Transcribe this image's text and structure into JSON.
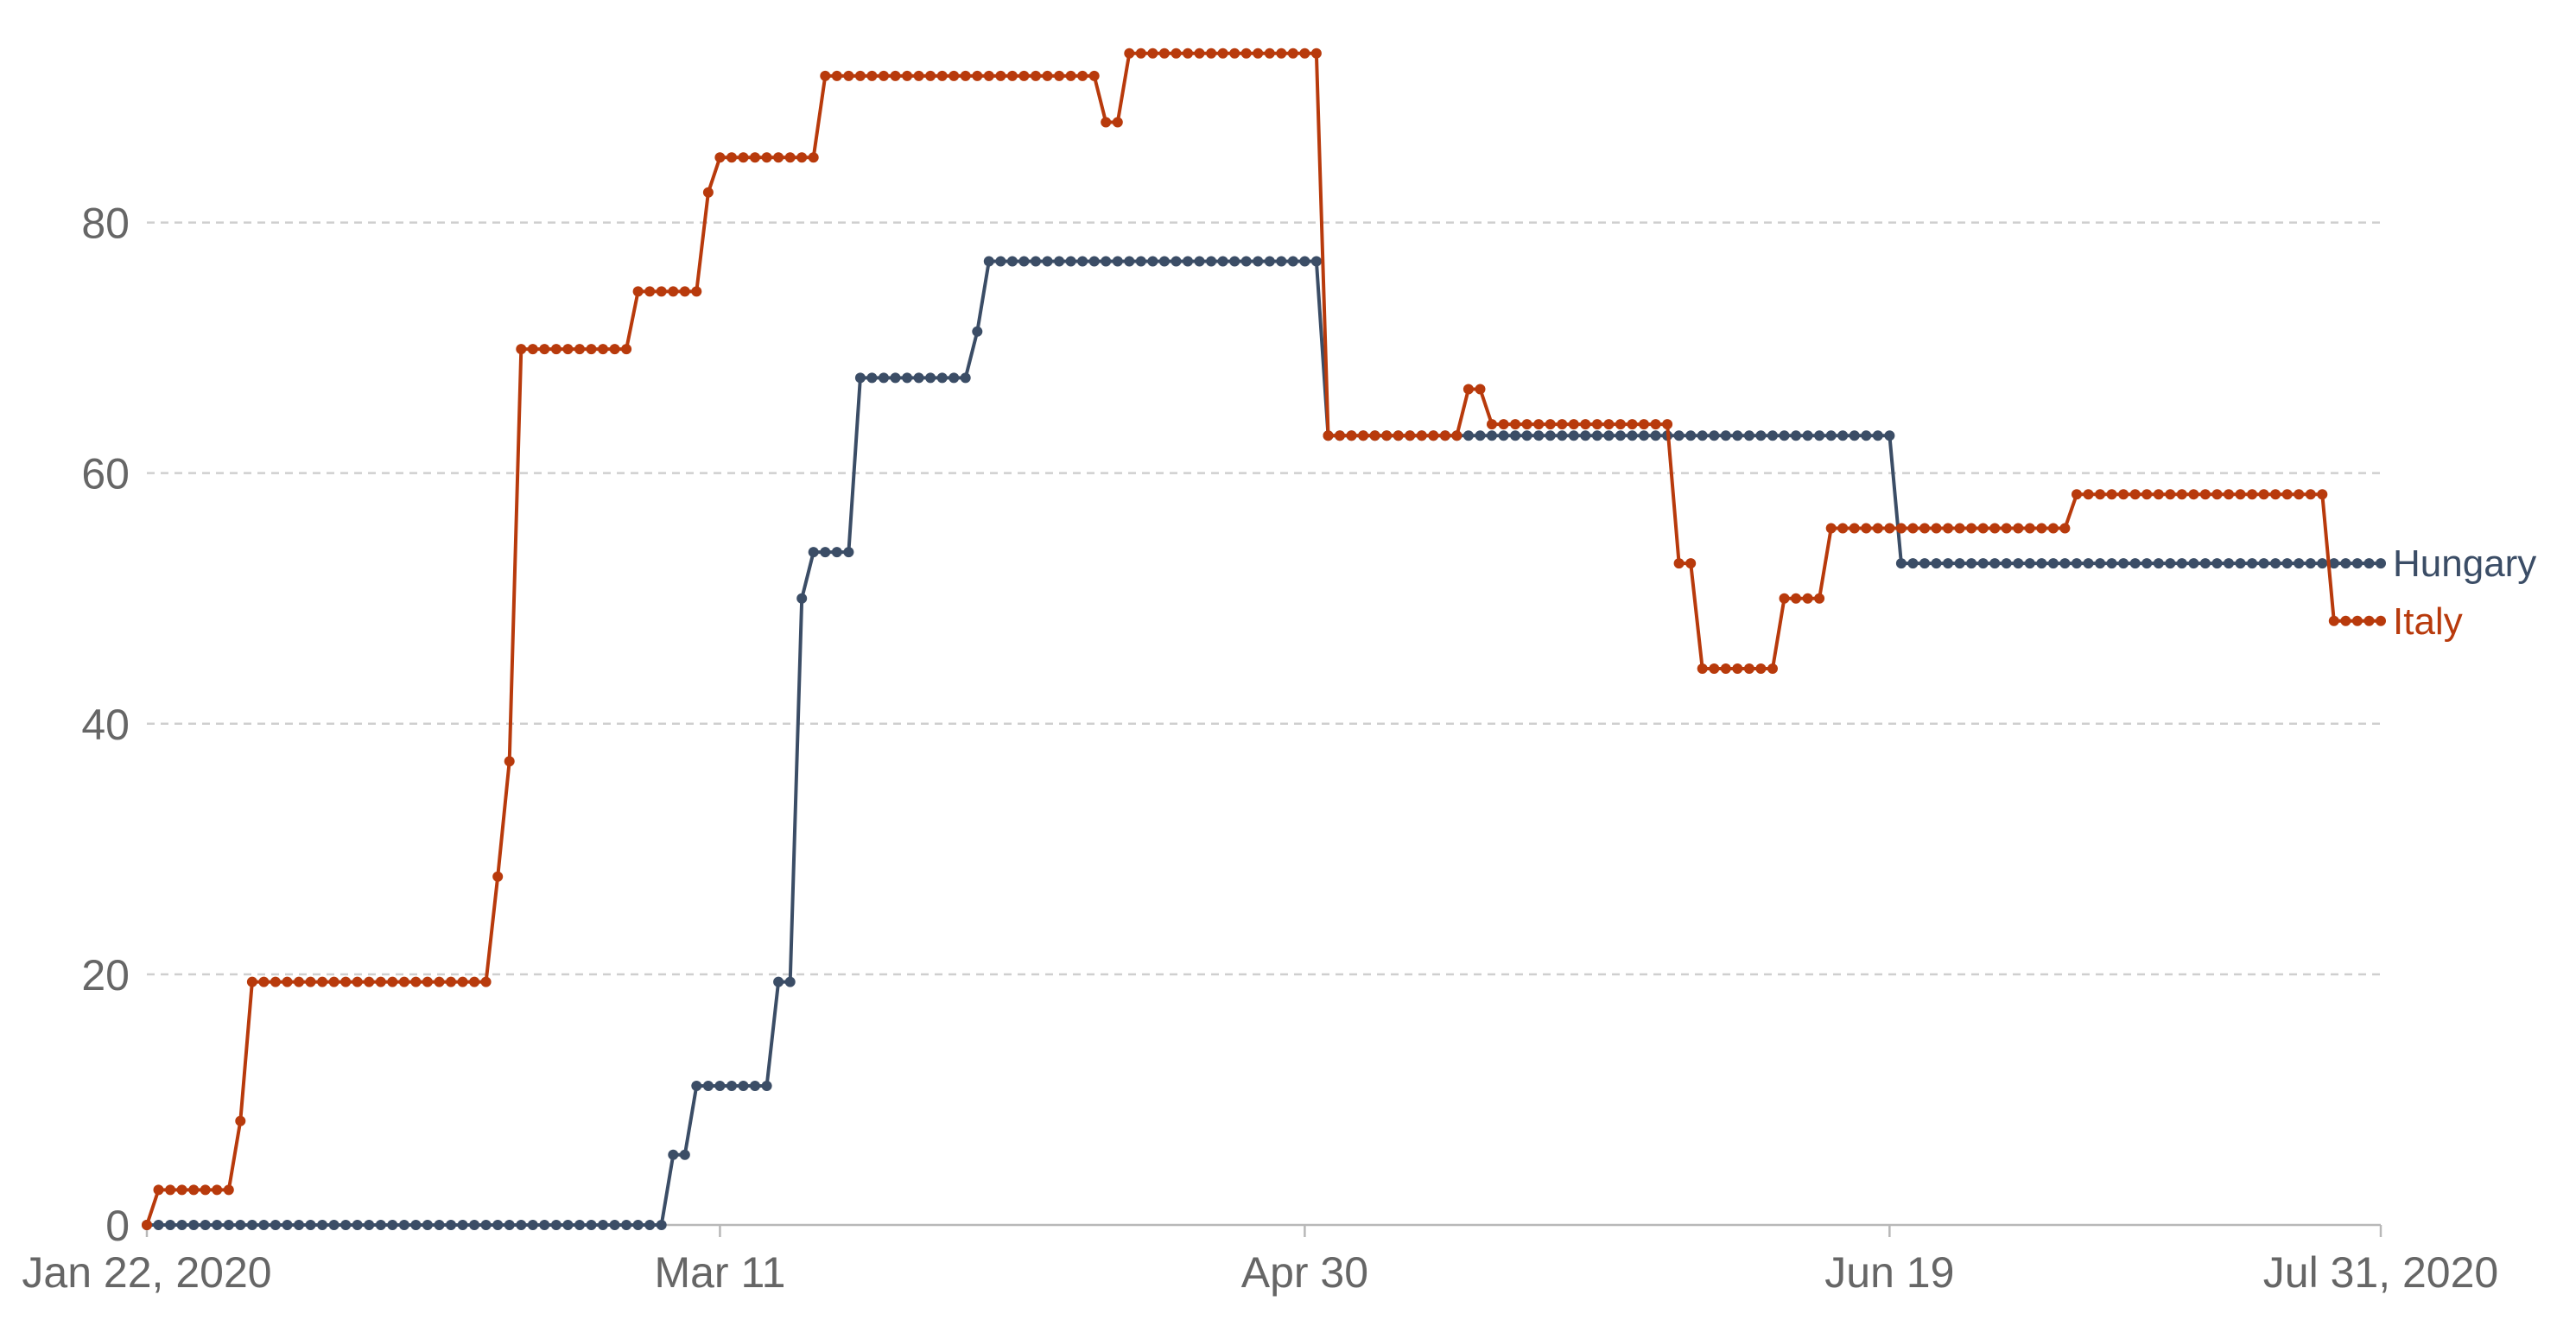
{
  "chart_data": {
    "type": "line",
    "x_start": "Jan 22, 2020",
    "x_end": "Jul 31, 2020",
    "x_ticks": [
      "Jan 22, 2020",
      "Mar 11",
      "Apr 30",
      "Jun 19",
      "Jul 31, 2020"
    ],
    "y_ticks": [
      "0",
      "20",
      "40",
      "60",
      "80"
    ],
    "ylim": [
      0,
      95
    ],
    "grid": true,
    "legend": "inline labels at line ends (right)",
    "series": [
      {
        "name": "Hungary",
        "color": "#3b4d66",
        "steps": [
          [
            "Jan 22, 2020",
            0
          ],
          [
            "Mar 7, 2020",
            5.6
          ],
          [
            "Mar 9, 2020",
            11.1
          ],
          [
            "Mar 16, 2020",
            19.4
          ],
          [
            "Mar 18, 2020",
            50
          ],
          [
            "Mar 19, 2020",
            53.7
          ],
          [
            "Mar 23, 2020",
            67.6
          ],
          [
            "Apr 2, 2020",
            71.3
          ],
          [
            "Apr 3, 2020",
            76.9
          ],
          [
            "May 2, 2020",
            63
          ],
          [
            "Jun 20, 2020",
            52.8
          ]
        ]
      },
      {
        "name": "Italy",
        "color": "#b83a0c",
        "steps": [
          [
            "Jan 22, 2020",
            0
          ],
          [
            "Jan 23, 2020",
            2.8
          ],
          [
            "Jan 30, 2020",
            8.3
          ],
          [
            "Jan 31, 2020",
            19.4
          ],
          [
            "Feb 21, 2020",
            27.8
          ],
          [
            "Feb 22, 2020",
            37
          ],
          [
            "Feb 23, 2020",
            69.9
          ],
          [
            "Mar 4, 2020",
            74.5
          ],
          [
            "Mar 10, 2020",
            82.4
          ],
          [
            "Mar 11, 2020",
            85.2
          ],
          [
            "Mar 20, 2020",
            91.7
          ],
          [
            "Apr 13, 2020",
            88
          ],
          [
            "Apr 15, 2020",
            93.5
          ],
          [
            "May 2, 2020",
            63
          ],
          [
            "May 14, 2020",
            66.7
          ],
          [
            "May 16, 2020",
            63.9
          ],
          [
            "Jun 1, 2020",
            52.8
          ],
          [
            "Jun 3, 2020",
            44.4
          ],
          [
            "Jun 10, 2020",
            50
          ],
          [
            "Jun 14, 2020",
            55.6
          ],
          [
            "Jul 5, 2020",
            58.3
          ],
          [
            "Jul 27, 2020",
            48.2
          ]
        ]
      }
    ]
  }
}
